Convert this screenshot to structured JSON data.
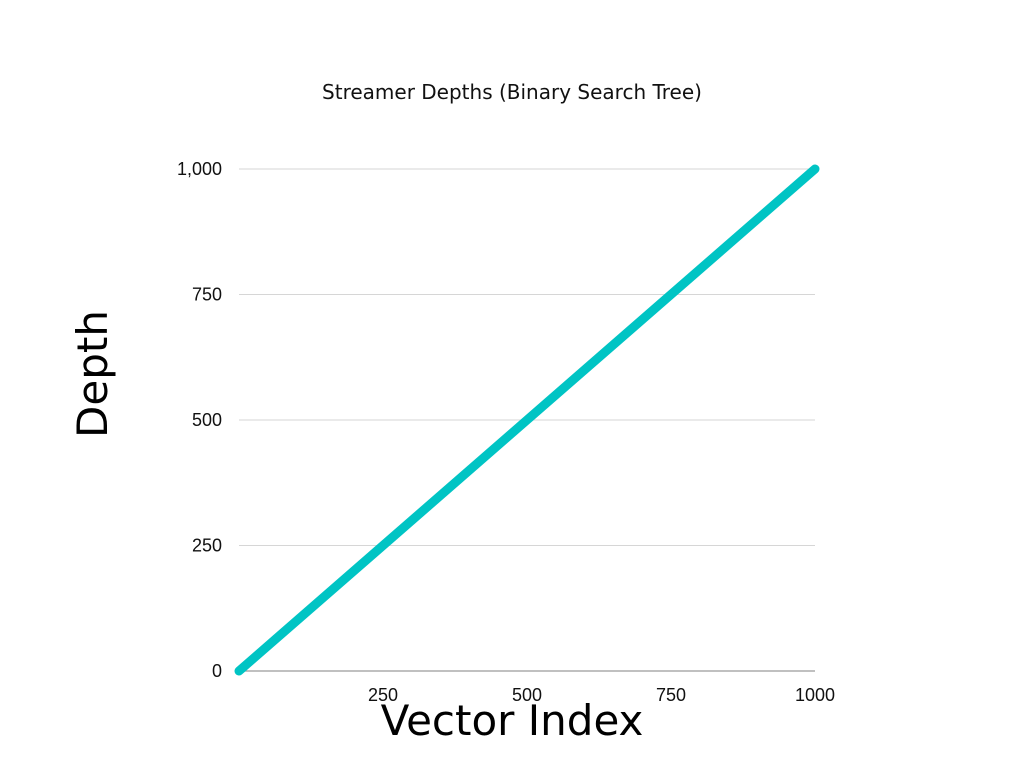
{
  "chart_data": {
    "type": "line",
    "title": "Streamer Depths (Binary Search Tree)",
    "xlabel": "Vector Index",
    "ylabel": "Depth",
    "xlim": [
      0,
      1000
    ],
    "ylim": [
      0,
      1000
    ],
    "x_ticks": [
      250,
      500,
      750,
      1000
    ],
    "x_tick_labels": [
      "250",
      "500",
      "750",
      "1000"
    ],
    "y_ticks": [
      0,
      250,
      500,
      750,
      1000
    ],
    "y_tick_labels": [
      "0",
      "250",
      "500",
      "750",
      "1,000"
    ],
    "grid": true,
    "series": [
      {
        "color": "#00C4C4",
        "x": [
          0,
          1000
        ],
        "y": [
          0,
          1000
        ]
      }
    ]
  }
}
